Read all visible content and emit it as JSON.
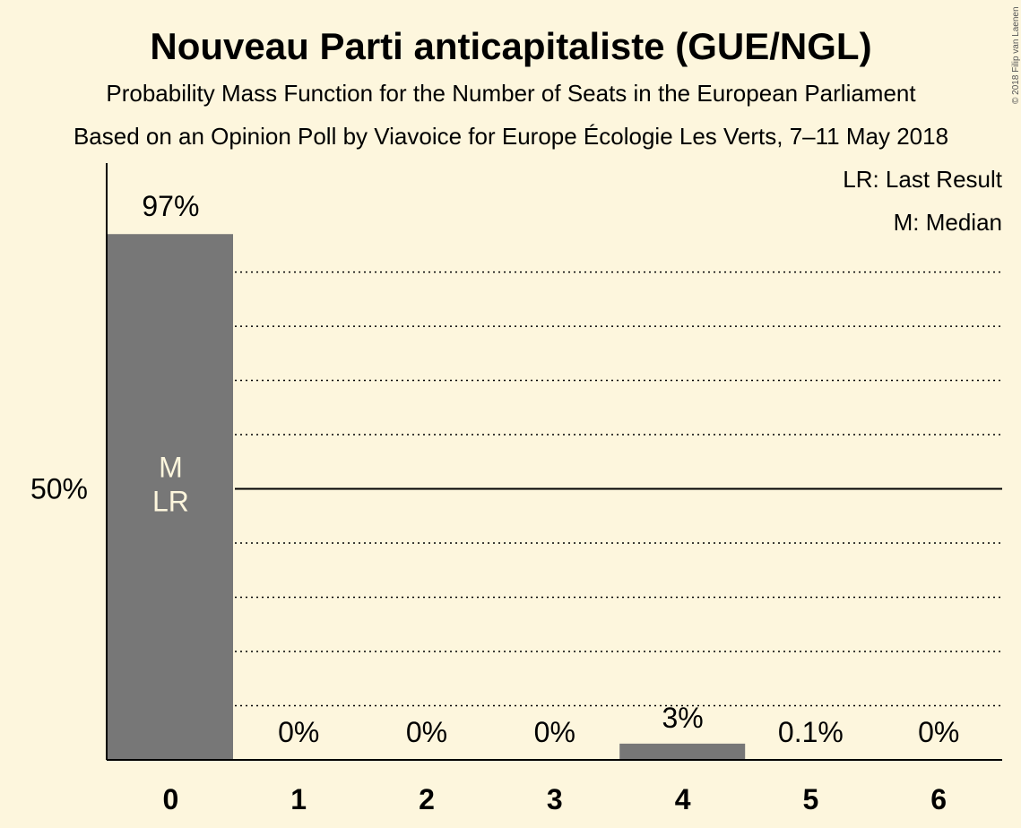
{
  "chart_data": {
    "type": "bar",
    "title": "Nouveau Parti anticapitaliste (GUE/NGL)",
    "subtitle": "Probability Mass Function for the Number of Seats in the European Parliament",
    "subtitle2": "Based on an Opinion Poll by Viavoice for Europe Écologie Les Verts, 7–11 May 2018",
    "categories": [
      "0",
      "1",
      "2",
      "3",
      "4",
      "5",
      "6"
    ],
    "values": [
      97,
      0,
      0,
      0,
      3,
      0.1,
      0
    ],
    "value_labels": [
      "97%",
      "0%",
      "0%",
      "0%",
      "3%",
      "0.1%",
      "0%"
    ],
    "ylim": [
      0,
      105.8
    ],
    "y_tick_label": "50%",
    "y_tick_value": 50,
    "grid_values": [
      10,
      20,
      30,
      40,
      60,
      70,
      80,
      90
    ],
    "bar_marks": [
      {
        "category": "0",
        "lines": [
          "M",
          "LR"
        ]
      }
    ],
    "legend": [
      "LR: Last Result",
      "M: Median"
    ],
    "legend_position": "top-right",
    "colors": {
      "bar": "#777777",
      "background": "#FDF6DD",
      "axis": "#000000"
    },
    "copyright": "© 2018 Filip van Laenen"
  }
}
